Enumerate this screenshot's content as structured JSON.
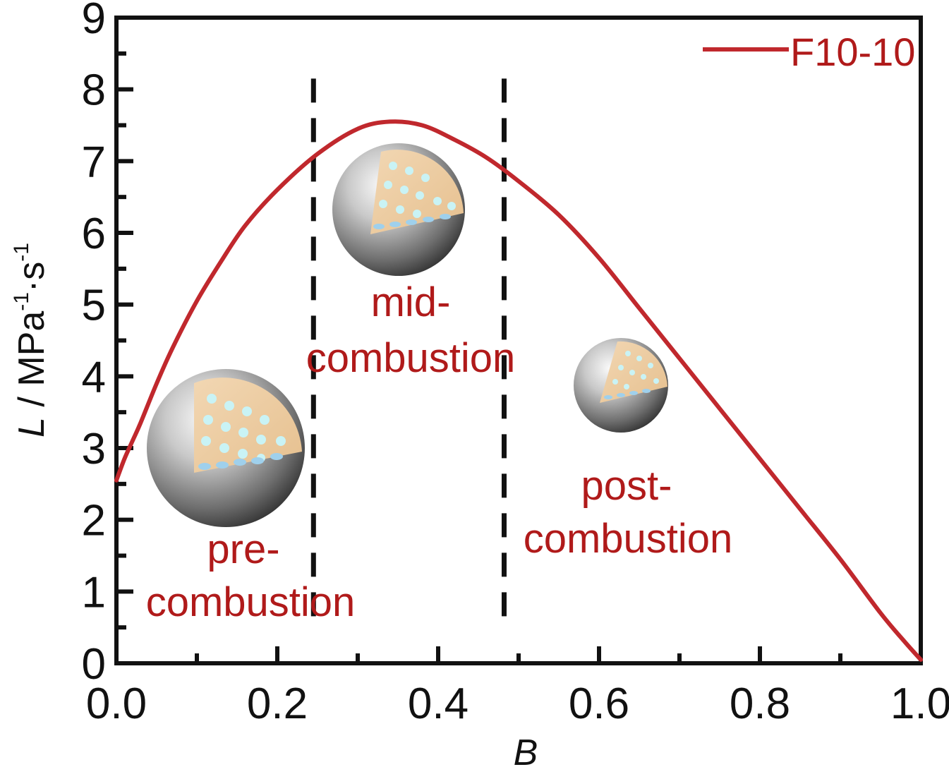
{
  "chart_data": {
    "type": "line",
    "xlabel": "B",
    "ylabel": {
      "prefix": "L",
      "unit_parts": [
        " / MPa",
        "-1",
        "·s",
        "-1"
      ]
    },
    "xlim": [
      0.0,
      1.0
    ],
    "ylim": [
      0,
      9
    ],
    "x_ticks": [
      "0.0",
      "0.2",
      "0.4",
      "0.6",
      "0.8",
      "1.0"
    ],
    "y_ticks": [
      "0",
      "1",
      "2",
      "3",
      "4",
      "5",
      "6",
      "7",
      "8",
      "9"
    ],
    "grid": false,
    "legend_position": "top-right",
    "series": [
      {
        "name": "F10-10",
        "color": "#c0282d",
        "x": [
          0.0,
          0.01,
          0.02,
          0.03,
          0.05,
          0.07,
          0.1,
          0.13,
          0.16,
          0.2,
          0.25,
          0.3,
          0.34,
          0.38,
          0.42,
          0.46,
          0.5,
          0.55,
          0.6,
          0.65,
          0.7,
          0.75,
          0.8,
          0.85,
          0.9,
          0.95,
          0.98,
          1.0
        ],
        "y": [
          2.55,
          2.85,
          3.1,
          3.35,
          3.9,
          4.4,
          5.05,
          5.6,
          6.1,
          6.6,
          7.1,
          7.45,
          7.55,
          7.5,
          7.3,
          7.05,
          6.72,
          6.25,
          5.65,
          4.95,
          4.25,
          3.55,
          2.85,
          2.15,
          1.45,
          0.7,
          0.3,
          0.05
        ]
      }
    ],
    "vertical_dividers": [
      0.245,
      0.482
    ],
    "phases": [
      {
        "line1": "pre-",
        "line2": "combustion"
      },
      {
        "line1": "mid-",
        "line2": "combustion"
      },
      {
        "line1": "post-",
        "line2": "combustion"
      }
    ]
  },
  "colors": {
    "curve": "#c0282d",
    "label": "#b01a1a",
    "axis": "#111111",
    "divider": "#111111"
  }
}
